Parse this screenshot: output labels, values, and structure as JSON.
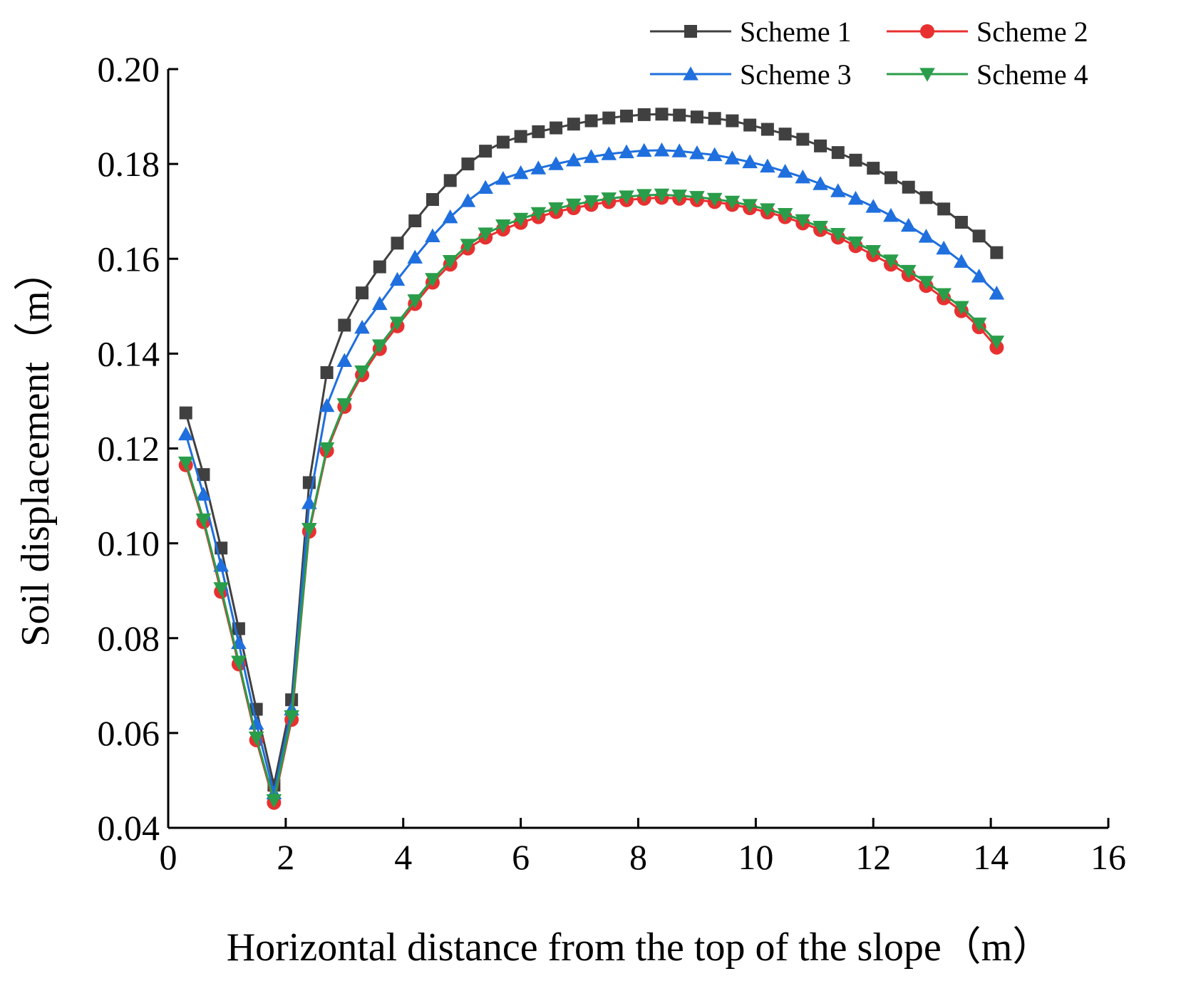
{
  "chart_data": {
    "type": "line",
    "title": "",
    "xlabel": "Horizontal distance from the top of the slope（m）",
    "ylabel": "Soil displacement（m）",
    "xlim": [
      0,
      16
    ],
    "ylim": [
      0.04,
      0.2
    ],
    "xticks": [
      "0",
      "2",
      "4",
      "6",
      "8",
      "10",
      "12",
      "14",
      "16"
    ],
    "yticks": [
      "0.04",
      "0.06",
      "0.08",
      "0.10",
      "0.12",
      "0.14",
      "0.16",
      "0.18",
      "0.20"
    ],
    "xtick_values": [
      0,
      2,
      4,
      6,
      8,
      10,
      12,
      14,
      16
    ],
    "ytick_values": [
      0.04,
      0.06,
      0.08,
      0.1,
      0.12,
      0.14,
      0.16,
      0.18,
      0.2
    ],
    "legend_position": "top-right",
    "x": [
      0.3,
      0.6,
      0.9,
      1.2,
      1.5,
      1.8,
      2.1,
      2.4,
      2.7,
      3.0,
      3.3,
      3.6,
      3.9,
      4.2,
      4.5,
      4.8,
      5.1,
      5.4,
      5.7,
      6.0,
      6.3,
      6.6,
      6.9,
      7.2,
      7.5,
      7.8,
      8.1,
      8.4,
      8.7,
      9.0,
      9.3,
      9.6,
      9.9,
      10.2,
      10.5,
      10.8,
      11.1,
      11.4,
      11.7,
      12.0,
      12.3,
      12.6,
      12.9,
      13.2,
      13.5,
      13.8,
      14.1
    ],
    "series": [
      {
        "name": "Scheme 1",
        "color": "#404040",
        "marker": "square",
        "values": [
          0.1275,
          0.1145,
          0.099,
          0.082,
          0.065,
          0.049,
          0.067,
          0.1128,
          0.136,
          0.146,
          0.1528,
          0.1583,
          0.1633,
          0.168,
          0.1725,
          0.1765,
          0.18,
          0.1827,
          0.1846,
          0.1858,
          0.1868,
          0.1876,
          0.1884,
          0.1891,
          0.1897,
          0.1901,
          0.1904,
          0.1905,
          0.1903,
          0.1899,
          0.1896,
          0.1891,
          0.1882,
          0.1873,
          0.1863,
          0.1852,
          0.1838,
          0.1824,
          0.1808,
          0.1791,
          0.1771,
          0.1751,
          0.1729,
          0.1705,
          0.1677,
          0.1648,
          0.1613
        ]
      },
      {
        "name": "Scheme 2",
        "color": "#e83030",
        "marker": "circle",
        "values": [
          0.1165,
          0.1045,
          0.0898,
          0.0745,
          0.0585,
          0.0453,
          0.0628,
          0.1025,
          0.1195,
          0.1288,
          0.1355,
          0.141,
          0.1458,
          0.1505,
          0.155,
          0.1588,
          0.1622,
          0.1645,
          0.1662,
          0.1676,
          0.1688,
          0.1699,
          0.1707,
          0.1714,
          0.172,
          0.1724,
          0.1727,
          0.1729,
          0.1727,
          0.1724,
          0.172,
          0.1714,
          0.1707,
          0.1698,
          0.1688,
          0.1675,
          0.1661,
          0.1645,
          0.1627,
          0.1608,
          0.1588,
          0.1566,
          0.1543,
          0.1517,
          0.149,
          0.1456,
          0.1413
        ]
      },
      {
        "name": "Scheme 3",
        "color": "#1f6fde",
        "marker": "triangle-up",
        "values": [
          0.123,
          0.1103,
          0.0953,
          0.079,
          0.062,
          0.0473,
          0.065,
          0.1085,
          0.129,
          0.1385,
          0.1455,
          0.1505,
          0.1556,
          0.1603,
          0.1648,
          0.1688,
          0.1722,
          0.175,
          0.1769,
          0.1781,
          0.1791,
          0.18,
          0.1808,
          0.1815,
          0.1821,
          0.1825,
          0.1828,
          0.1829,
          0.1827,
          0.1823,
          0.1819,
          0.1812,
          0.1804,
          0.1795,
          0.1784,
          0.1772,
          0.1758,
          0.1743,
          0.1727,
          0.171,
          0.1691,
          0.167,
          0.1647,
          0.1622,
          0.1594,
          0.1563,
          0.1527
        ]
      },
      {
        "name": "Scheme 4",
        "color": "#2a9d4a",
        "marker": "triangle-down",
        "values": [
          0.117,
          0.105,
          0.0905,
          0.075,
          0.059,
          0.0458,
          0.0635,
          0.103,
          0.12,
          0.1293,
          0.1362,
          0.1417,
          0.1465,
          0.1512,
          0.1557,
          0.1595,
          0.1629,
          0.1653,
          0.167,
          0.1684,
          0.1696,
          0.1706,
          0.1714,
          0.1721,
          0.1727,
          0.1731,
          0.1734,
          0.1735,
          0.1733,
          0.173,
          0.1726,
          0.172,
          0.1713,
          0.1704,
          0.1694,
          0.1681,
          0.1667,
          0.1652,
          0.1634,
          0.1616,
          0.1596,
          0.1574,
          0.1551,
          0.1525,
          0.1498,
          0.1463,
          0.1425
        ]
      }
    ]
  }
}
